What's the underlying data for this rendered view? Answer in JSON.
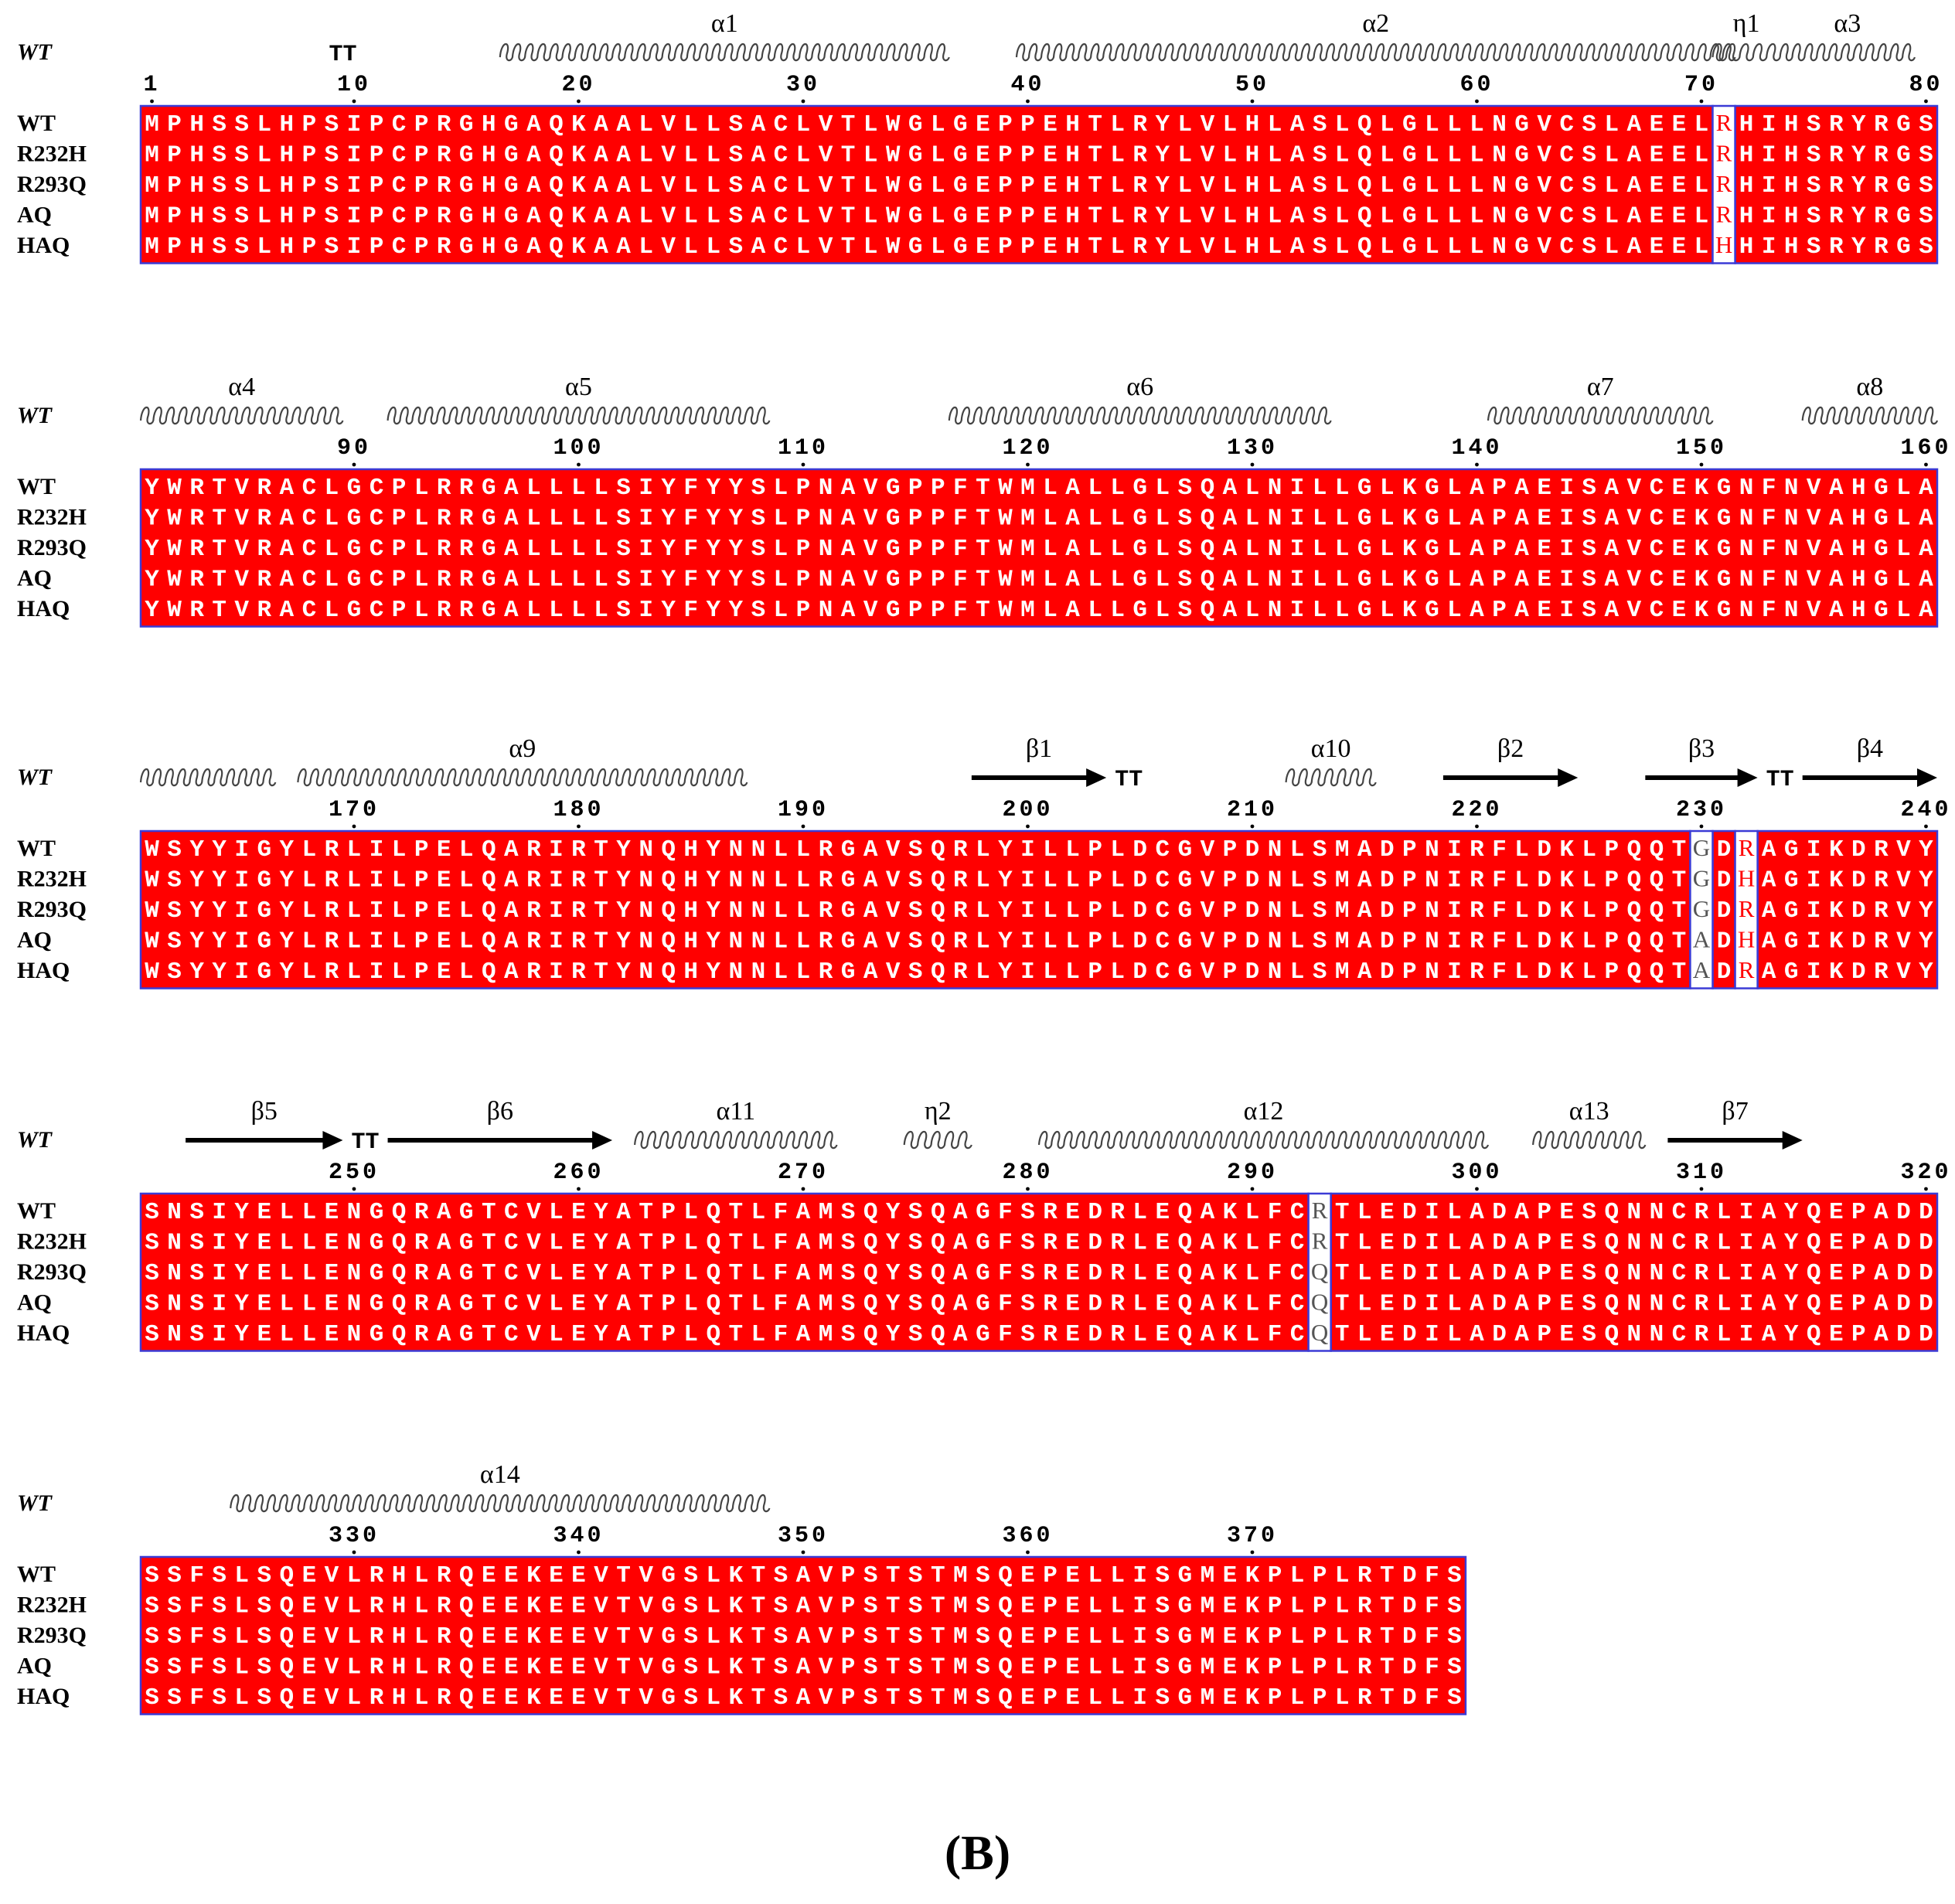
{
  "figure": {
    "caption": "(B)",
    "colors": {
      "identical_bg": "#ff0000",
      "identical_text": "#ffffff",
      "variable_text": "#ff0000",
      "similar_text": "#555555",
      "box_border": "#3b3bd6"
    },
    "blocks": [
      {
        "start": 1,
        "ss_label_row": "WT",
        "number_ticks": [
          1,
          10,
          20,
          30,
          40,
          50,
          60,
          70,
          80
        ],
        "ss": [
          {
            "type": "turn",
            "from": 9,
            "to": 10,
            "label": "TT"
          },
          {
            "type": "helix",
            "from": 17,
            "to": 36,
            "label": "α1"
          },
          {
            "type": "helix",
            "from": 40,
            "to": 71,
            "label": "α2"
          },
          {
            "type": "helix",
            "from": 71,
            "to": 73,
            "label": "η1"
          },
          {
            "type": "helix",
            "from": 74,
            "to": 79,
            "label": "α3"
          }
        ],
        "sequences": [
          {
            "name": "WT",
            "seq": "MPHSSLHPSIPCPRGHGAQKAALVLLSACLVTLWGLGEPPEHTLRYLVLHLASLQLGLLLNGVCSLAEELRHIHSRYRGS"
          },
          {
            "name": "R232H",
            "seq": "MPHSSLHPSIPCPRGHGAQKAALVLLSACLVTLWGLGEPPEHTLRYLVLHLASLQLGLLLNGVCSLAEELRHIHSRYRGS"
          },
          {
            "name": "R293Q",
            "seq": "MPHSSLHPSIPCPRGHGAQKAALVLLSACLVTLWGLGEPPEHTLRYLVLHLASLQLGLLLNGVCSLAEELRHIHSRYRGS"
          },
          {
            "name": "AQ",
            "seq": "MPHSSLHPSIPCPRGHGAQKAALVLLSACLVTLWGLGEPPEHTLRYLVLHLASLQLGLLLNGVCSLAEELRHIHSRYRGS"
          },
          {
            "name": "HAQ",
            "seq": "MPHSSLHPSIPCPRGHGAQKAALVLLSACLVTLWGLGEPPEHTLRYLVLHLASLQLGLLLNGVCSLAEELHHIHSRYRGS"
          }
        ],
        "variable_cols": [
          {
            "pos": 71,
            "kind": "variable"
          }
        ]
      },
      {
        "start": 81,
        "ss_label_row": "WT",
        "number_ticks": [
          90,
          100,
          110,
          120,
          130,
          140,
          150,
          160
        ],
        "ss": [
          {
            "type": "helix",
            "from": 81,
            "to": 89,
            "label": "α4"
          },
          {
            "type": "helix",
            "from": 92,
            "to": 108,
            "label": "α5"
          },
          {
            "type": "helix",
            "from": 117,
            "to": 133,
            "label": "α6"
          },
          {
            "type": "helix",
            "from": 141,
            "to": 150,
            "label": "α7"
          },
          {
            "type": "helix",
            "from": 155,
            "to": 160,
            "label": "α8"
          }
        ],
        "sequences": [
          {
            "name": "WT",
            "seq": "YWRTVRACLGCPLRRGALLLLSIYFYYSLPNAVGPPFTWMLALLGLSQALNILLGLKGLAPAEISAVCEKGNFNVAHGLA"
          },
          {
            "name": "R232H",
            "seq": "YWRTVRACLGCPLRRGALLLLSIYFYYSLPNAVGPPFTWMLALLGLSQALNILLGLKGLAPAEISAVCEKGNFNVAHGLA"
          },
          {
            "name": "R293Q",
            "seq": "YWRTVRACLGCPLRRGALLLLSIYFYYSLPNAVGPPFTWMLALLGLSQALNILLGLKGLAPAEISAVCEKGNFNVAHGLA"
          },
          {
            "name": "AQ",
            "seq": "YWRTVRACLGCPLRRGALLLLSIYFYYSLPNAVGPPFTWMLALLGLSQALNILLGLKGLAPAEISAVCEKGNFNVAHGLA"
          },
          {
            "name": "HAQ",
            "seq": "YWRTVRACLGCPLRRGALLLLSIYFYYSLPNAVGPPFTWMLALLGLSQALNILLGLKGLAPAEISAVCEKGNFNVAHGLA"
          }
        ],
        "variable_cols": []
      },
      {
        "start": 161,
        "ss_label_row": "WT",
        "number_ticks": [
          170,
          180,
          190,
          200,
          210,
          220,
          230,
          240
        ],
        "ss": [
          {
            "type": "helix",
            "from": 161,
            "to": 166,
            "label": ""
          },
          {
            "type": "helix",
            "from": 168,
            "to": 187,
            "label": "α9"
          },
          {
            "type": "strand",
            "from": 198,
            "to": 203,
            "label": "β1"
          },
          {
            "type": "turn",
            "from": 204,
            "to": 205,
            "label": "TT"
          },
          {
            "type": "helix",
            "from": 212,
            "to": 215,
            "label": "α10"
          },
          {
            "type": "strand",
            "from": 219,
            "to": 224,
            "label": "β2"
          },
          {
            "type": "strand",
            "from": 228,
            "to": 232,
            "label": "β3"
          },
          {
            "type": "turn",
            "from": 233,
            "to": 234,
            "label": "TT"
          },
          {
            "type": "strand",
            "from": 235,
            "to": 240,
            "label": "β4"
          }
        ],
        "sequences": [
          {
            "name": "WT",
            "seq": "WSYYIGYLRLILPELQARIRTYNQHYNNLLRGAVSQRLYILLPLDCGVPDNLSMADPNIRFLDKLPQQTGDRAGIKDRVY"
          },
          {
            "name": "R232H",
            "seq": "WSYYIGYLRLILPELQARIRTYNQHYNNLLRGAVSQRLYILLPLDCGVPDNLSMADPNIRFLDKLPQQTGDHAGIKDRVY"
          },
          {
            "name": "R293Q",
            "seq": "WSYYIGYLRLILPELQARIRTYNQHYNNLLRGAVSQRLYILLPLDCGVPDNLSMADPNIRFLDKLPQQTGDRAGIKDRVY"
          },
          {
            "name": "AQ",
            "seq": "WSYYIGYLRLILPELQARIRTYNQHYNNLLRGAVSQRLYILLPLDCGVPDNLSMADPNIRFLDKLPQQTADHAGIKDRVY"
          },
          {
            "name": "HAQ",
            "seq": "WSYYIGYLRLILPELQARIRTYNQHYNNLLRGAVSQRLYILLPLDCGVPDNLSMADPNIRFLDKLPQQTADRAGIKDRVY"
          }
        ],
        "variable_cols": [
          {
            "pos": 230,
            "kind": "similar"
          },
          {
            "pos": 232,
            "kind": "variable"
          }
        ]
      },
      {
        "start": 241,
        "ss_label_row": "WT",
        "number_ticks": [
          250,
          260,
          270,
          280,
          290,
          300,
          310,
          320
        ],
        "ss": [
          {
            "type": "strand",
            "from": 243,
            "to": 249,
            "label": "β5"
          },
          {
            "type": "turn",
            "from": 250,
            "to": 251,
            "label": "TT"
          },
          {
            "type": "strand",
            "from": 252,
            "to": 261,
            "label": "β6"
          },
          {
            "type": "helix",
            "from": 263,
            "to": 271,
            "label": "α11"
          },
          {
            "type": "helix",
            "from": 275,
            "to": 277,
            "label": "η2"
          },
          {
            "type": "helix",
            "from": 281,
            "to": 300,
            "label": "α12"
          },
          {
            "type": "helix",
            "from": 303,
            "to": 307,
            "label": "α13"
          },
          {
            "type": "strand",
            "from": 309,
            "to": 314,
            "label": "β7"
          }
        ],
        "sequences": [
          {
            "name": "WT",
            "seq": "SNSIYELLENGQRAGTCVLEYATPLQTLFAMSQYSQAGFSREDRLEQAKLFCRTLEDILADAPESQNNCRLIAYQEPADD"
          },
          {
            "name": "R232H",
            "seq": "SNSIYELLENGQRAGTCVLEYATPLQTLFAMSQYSQAGFSREDRLEQAKLFCRTLEDILADAPESQNNCRLIAYQEPADD"
          },
          {
            "name": "R293Q",
            "seq": "SNSIYELLENGQRAGTCVLEYATPLQTLFAMSQYSQAGFSREDRLEQAKLFCQTLEDILADAPESQNNCRLIAYQEPADD"
          },
          {
            "name": "AQ",
            "seq": "SNSIYELLENGQRAGTCVLEYATPLQTLFAMSQYSQAGFSREDRLEQAKLFCQTLEDILADAPESQNNCRLIAYQEPADD"
          },
          {
            "name": "HAQ",
            "seq": "SNSIYELLENGQRAGTCVLEYATPLQTLFAMSQYSQAGFSREDRLEQAKLFCQTLEDILADAPESQNNCRLIAYQEPADD"
          }
        ],
        "variable_cols": [
          {
            "pos": 293,
            "kind": "similar"
          }
        ]
      },
      {
        "start": 321,
        "ss_label_row": "WT",
        "number_ticks": [
          330,
          340,
          350,
          360,
          370
        ],
        "ss": [
          {
            "type": "helix",
            "from": 325,
            "to": 348,
            "label": "α14"
          }
        ],
        "sequences": [
          {
            "name": "WT",
            "seq": "SSFSLSQEVLRHLRQEEKEEVTVGSLKTSAVPSTSTMSQEPELLISGMEKPLPLRTDFS"
          },
          {
            "name": "R232H",
            "seq": "SSFSLSQEVLRHLRQEEKEEVTVGSLKTSAVPSTSTMSQEPELLISGMEKPLPLRTDFS"
          },
          {
            "name": "R293Q",
            "seq": "SSFSLSQEVLRHLRQEEKEEVTVGSLKTSAVPSTSTMSQEPELLISGMEKPLPLRTDFS"
          },
          {
            "name": "AQ",
            "seq": "SSFSLSQEVLRHLRQEEKEEVTVGSLKTSAVPSTSTMSQEPELLISGMEKPLPLRTDFS"
          },
          {
            "name": "HAQ",
            "seq": "SSFSLSQEVLRHLRQEEKEEVTVGSLKTSAVPSTSTMSQEPELLISGMEKPLPLRTDFS"
          }
        ],
        "variable_cols": []
      }
    ]
  }
}
